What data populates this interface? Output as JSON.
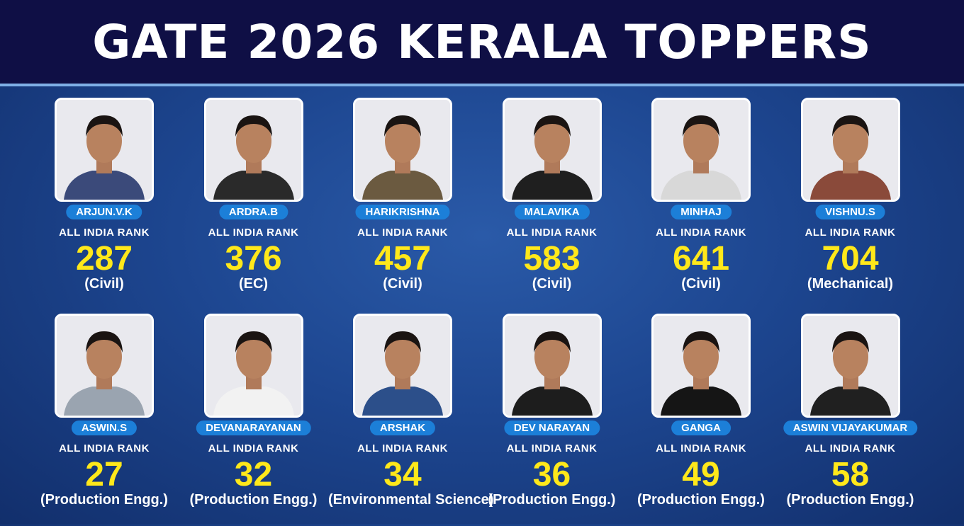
{
  "header": {
    "title": "GATE 2026 KERALA TOPPERS"
  },
  "rank_label": "ALL INDIA RANK",
  "toppers": [
    {
      "name": "ARJUN.V.K",
      "rank": 287,
      "branch": "(Civil)"
    },
    {
      "name": "ARDRA.B",
      "rank": 376,
      "branch": "(EC)"
    },
    {
      "name": "HARIKRISHNA",
      "rank": 457,
      "branch": "(Civil)"
    },
    {
      "name": "MALAVIKA",
      "rank": 583,
      "branch": "(Civil)"
    },
    {
      "name": "MINHAJ",
      "rank": 641,
      "branch": "(Civil)"
    },
    {
      "name": "VISHNU.S",
      "rank": 704,
      "branch": "(Mechanical)"
    },
    {
      "name": "ASWIN.S",
      "rank": 27,
      "branch": "(Production Engg.)"
    },
    {
      "name": "DEVANARAYANAN",
      "rank": 32,
      "branch": "(Production Engg.)"
    },
    {
      "name": "ARSHAK",
      "rank": 34,
      "branch": "(Environmental Science)"
    },
    {
      "name": "DEV NARAYAN",
      "rank": 36,
      "branch": "(Production Engg.)"
    },
    {
      "name": "GANGA",
      "rank": 49,
      "branch": "(Production Engg.)"
    },
    {
      "name": "ASWIN VIJAYAKUMAR",
      "rank": 58,
      "branch": "(Production Engg.)"
    }
  ]
}
